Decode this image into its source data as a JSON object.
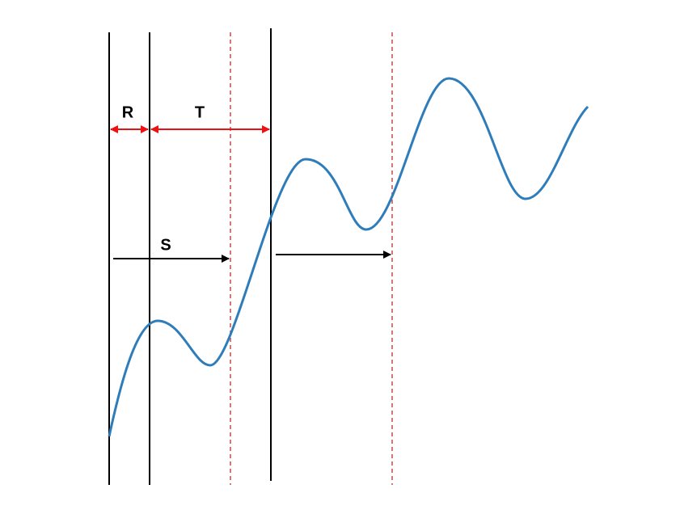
{
  "labels": {
    "r": "R",
    "t": "T",
    "s": "S"
  }
}
